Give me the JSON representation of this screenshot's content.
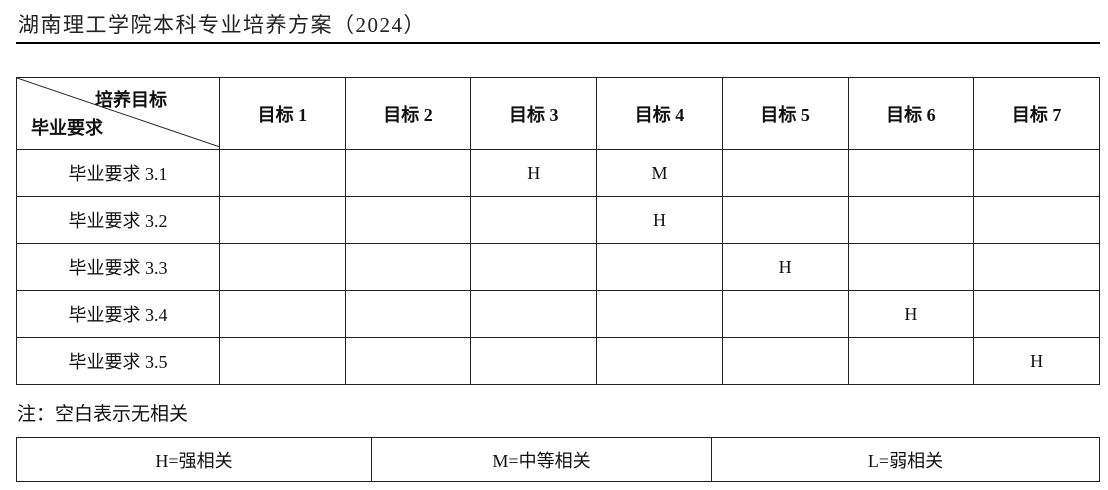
{
  "title": "湖南理工学院本科专业培养方案（2024）",
  "table": {
    "corner_top": "培养目标",
    "corner_bottom": "毕业要求",
    "columns": [
      "目标 1",
      "目标 2",
      "目标 3",
      "目标 4",
      "目标 5",
      "目标 6",
      "目标 7"
    ],
    "rows": [
      {
        "label": "毕业要求 3.1",
        "cells": [
          "",
          "",
          "H",
          "M",
          "",
          "",
          ""
        ]
      },
      {
        "label": "毕业要求 3.2",
        "cells": [
          "",
          "",
          "",
          "H",
          "",
          "",
          ""
        ]
      },
      {
        "label": "毕业要求 3.3",
        "cells": [
          "",
          "",
          "",
          "",
          "H",
          "",
          ""
        ]
      },
      {
        "label": "毕业要求 3.4",
        "cells": [
          "",
          "",
          "",
          "",
          "",
          "H",
          ""
        ]
      },
      {
        "label": "毕业要求 3.5",
        "cells": [
          "",
          "",
          "",
          "",
          "",
          "",
          "H"
        ]
      }
    ]
  },
  "note": "注：空白表示无相关",
  "legend": [
    "H=强相关",
    "M=中等相关",
    "L=弱相关"
  ]
}
